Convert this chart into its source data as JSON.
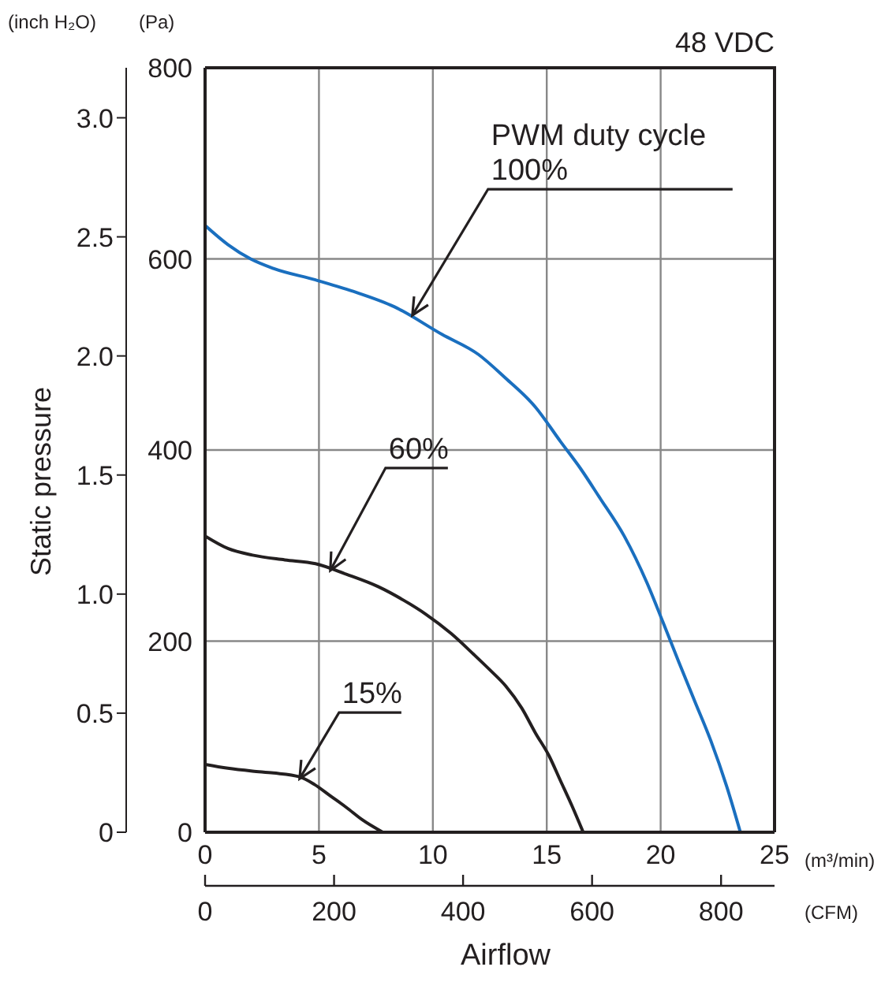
{
  "chart_data": {
    "type": "line",
    "title": "48 VDC",
    "xlabel": "Airflow",
    "y2label": "Static pressure",
    "xlim": [
      0,
      25
    ],
    "xticks": [
      0,
      5,
      10,
      15,
      20,
      25
    ],
    "x2lim": [
      0,
      882.9
    ],
    "x2ticks": [
      0,
      200,
      400,
      600,
      800
    ],
    "ylim": [
      0,
      800
    ],
    "yticks": [
      0,
      200,
      400,
      600,
      800
    ],
    "y2lim": [
      0,
      3.21
    ],
    "y2ticks": [
      {
        "value": 0,
        "label": "0"
      },
      {
        "value": 0.5,
        "label": "0.5"
      },
      {
        "value": 1,
        "label": "1.0"
      },
      {
        "value": 1.5,
        "label": "1.5"
      },
      {
        "value": 2,
        "label": "2.0"
      },
      {
        "value": 2.5,
        "label": "2.5"
      },
      {
        "value": 3,
        "label": "3.0"
      }
    ],
    "grid": true,
    "marker": "none",
    "line_style": "solid",
    "series": [
      {
        "color": "#1a6fbf",
        "x": [
          0,
          1,
          2,
          3,
          4.85,
          6.5,
          8.3,
          10.4,
          12,
          13.2,
          14.5,
          15.6,
          16.5,
          17.3,
          18.4,
          19.4,
          20.1,
          20.8,
          21.5,
          22.2,
          22.9,
          23.5
        ],
        "values": [
          635,
          615,
          600,
          590,
          578,
          566,
          550,
          521,
          500,
          475,
          445,
          409,
          380,
          351,
          310,
          261,
          220,
          178,
          137,
          96,
          48,
          0
        ]
      },
      {
        "color": "#231f20",
        "x": [
          0,
          1,
          2.08,
          3.5,
          4.85,
          6.2,
          7.6,
          8.7,
          9.7,
          10.8,
          11.8,
          12.5,
          13.2,
          13.9,
          14.5,
          15.1,
          15.6,
          16.1,
          16.6
        ],
        "values": [
          310,
          297,
          290,
          285,
          281,
          270,
          257,
          243,
          228,
          208,
          186,
          170,
          153,
          130,
          104,
          80,
          54,
          28,
          0
        ]
      },
      {
        "color": "#231f20",
        "x": [
          0,
          1,
          2.08,
          3,
          4.15,
          4.8,
          5.5,
          6.2,
          6.9,
          7.8
        ],
        "values": [
          71,
          67,
          64,
          62,
          58,
          50,
          38,
          26,
          13,
          0
        ]
      }
    ],
    "annotations": [
      {
        "text": "PWM duty cycle\n100%",
        "x": 9.1,
        "y": 541
      },
      {
        "text": "60%",
        "x": 5.5,
        "y": 274
      },
      {
        "text": "15%",
        "x": 4.15,
        "y": 56
      },
      "(inch H₂O)",
      "(Pa)",
      "(m³/min)",
      "(CFM)"
    ]
  }
}
